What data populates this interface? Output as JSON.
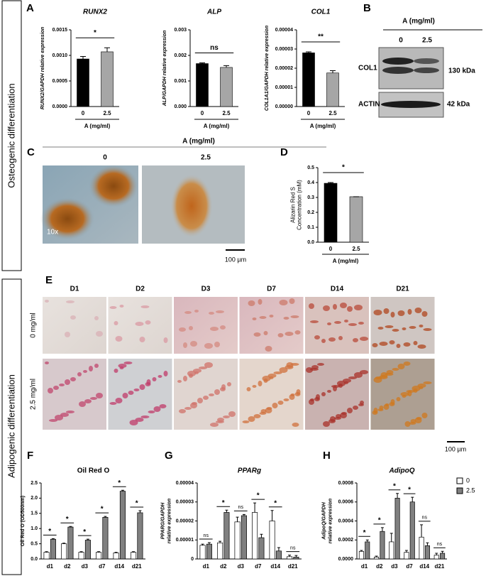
{
  "panels": {
    "letters": [
      "A",
      "B",
      "C",
      "D",
      "E",
      "F",
      "G",
      "H"
    ],
    "side_labels": [
      "Osteogenic differentiation",
      "Adipogenic differentiation"
    ]
  },
  "blot": {
    "header": "A (mg/ml)",
    "lanes": [
      "0",
      "2.5"
    ],
    "rows": [
      "COL1",
      "ACTIN"
    ],
    "sizes": [
      "130 kDa",
      "42 kDa"
    ]
  },
  "staining": {
    "header": "A (mg/ml)",
    "columns": [
      "0",
      "2.5"
    ],
    "magnification": "10x",
    "scale": "100 µm"
  },
  "oil_red_images": {
    "columns": [
      "D1",
      "D2",
      "D3",
      "D7",
      "D14",
      "D21"
    ],
    "rows": [
      "0 mg/ml",
      "2.5 mg/ml"
    ],
    "scale": "100 µm"
  },
  "chart_data": [
    {
      "type": "bar",
      "title": "RUNX2",
      "ylabel": [
        "RUNX2/GAPDH relative expression"
      ],
      "xlabel": "A (mg/ml)",
      "categories": [
        "0",
        "2.5"
      ],
      "values": [
        0.00093,
        0.00107
      ],
      "errors": [
        5e-05,
        8e-05
      ],
      "colors": [
        "#000000",
        "#a6a6a6"
      ],
      "significance": [
        "*"
      ],
      "ylim": [
        0,
        0.0015
      ],
      "yticks": [
        {
          "value": 0,
          "label": "0.0000"
        },
        0.0005,
        {
          "value": 0.001,
          "label": "0.0010"
        },
        0.0015
      ]
    },
    {
      "type": "bar",
      "title": "ALP",
      "ylabel": [
        "ALP/GAPDH relative expression"
      ],
      "xlabel": "A (mg/ml)",
      "categories": [
        "0",
        "2.5"
      ],
      "values": [
        0.00168,
        0.00153
      ],
      "errors": [
        3e-05,
        7e-05
      ],
      "colors": [
        "#000000",
        "#a6a6a6"
      ],
      "significance": [
        "ns"
      ],
      "ylim": [
        0,
        0.003
      ],
      "yticks": [
        {
          "value": 0,
          "label": "0.000"
        },
        0.001,
        0.002,
        0.003
      ]
    },
    {
      "type": "bar",
      "title": "COL1",
      "ylabel": [
        "COL1A1/GAPDH relative expression"
      ],
      "xlabel": "A (mg/ml)",
      "categories": [
        "0",
        "2.5"
      ],
      "values": [
        2.8e-05,
        1.75e-05
      ],
      "errors": [
        5e-07,
        1.2e-06
      ],
      "colors": [
        "#000000",
        "#a6a6a6"
      ],
      "significance": [
        "**"
      ],
      "ylim": [
        0,
        4e-05
      ],
      "yticks": [
        {
          "value": 0,
          "label": "0.00000"
        },
        1e-05,
        2e-05,
        3e-05,
        4e-05
      ]
    },
    {
      "type": "bar",
      "ylabel": [
        "Alizarin Red S",
        "Concentration (mM)"
      ],
      "xlabel": "A (mg/ml)",
      "categories": [
        "0",
        "2.5"
      ],
      "values": [
        0.395,
        0.305
      ],
      "errors": [
        0.005,
        0
      ],
      "colors": [
        "#000000",
        "#a6a6a6"
      ],
      "significance": [
        "*"
      ],
      "ylim": [
        0,
        0.5
      ],
      "yticks": [
        {
          "value": 0,
          "label": "0.0"
        },
        0.1,
        0.2,
        0.3,
        0.4,
        0.5
      ]
    },
    {
      "type": "grouped_bar",
      "title": "Oil Red O",
      "ylabel": [
        "Oil Red O (OD500nm)"
      ],
      "categories": [
        "d1",
        "d2",
        "d3",
        "d7",
        "d14",
        "d21"
      ],
      "series": [
        {
          "color": "#ffffff",
          "values": [
            0.22,
            0.5,
            0.22,
            0.22,
            0.2,
            0.22
          ],
          "errors": [
            0.02,
            0.02,
            0.02,
            0.02,
            0.02,
            0.02
          ]
        },
        {
          "color": "#808080",
          "values": [
            0.65,
            1.05,
            0.62,
            1.37,
            2.23,
            1.52
          ],
          "errors": [
            0.02,
            0.02,
            0.03,
            0.03,
            0.03,
            0.07
          ]
        }
      ],
      "significance": [
        "*",
        "*",
        "*",
        "*",
        "*",
        "*"
      ],
      "ylim": [
        0,
        2.5
      ],
      "yticks": [
        {
          "value": 0,
          "label": "0.0"
        },
        0.5,
        {
          "value": 1,
          "label": "1.0"
        },
        1.5,
        {
          "value": 2,
          "label": "2.0"
        },
        2.5
      ]
    },
    {
      "type": "grouped_bar",
      "title": "PPARg",
      "ylabel": [
        "PPARG/GAPDH",
        "relative expression"
      ],
      "categories": [
        "d1",
        "d2",
        "d3",
        "d7",
        "d14",
        "d21"
      ],
      "series": [
        {
          "color": "#ffffff",
          "values": [
            7.2e-06,
            8.5e-06,
            1.95e-05,
            2.45e-05,
            2e-05,
            1.2e-06
          ],
          "errors": [
            6e-07,
            8e-07,
            2.5e-06,
            5e-06,
            5.5e-06,
            8e-07
          ]
        },
        {
          "color": "#808080",
          "values": [
            7.8e-06,
            2.45e-05,
            2.28e-05,
            1.12e-05,
            4.2e-06,
            1e-06
          ],
          "errors": [
            8e-07,
            1.2e-06,
            6e-07,
            1.8e-06,
            1.8e-06,
            8e-07
          ]
        }
      ],
      "significance": [
        "ns",
        "*",
        "ns",
        "*",
        "*",
        "ns"
      ],
      "ylim": [
        0,
        4e-05
      ],
      "yticks": [
        0,
        1e-05,
        2e-05,
        3e-05,
        4e-05
      ]
    },
    {
      "type": "grouped_bar",
      "title": "AdipoQ",
      "ylabel": [
        "AdipoQ/GAPDH",
        "relative expression"
      ],
      "legend": "upper right",
      "categories": [
        "d1",
        "d2",
        "d3",
        "d7",
        "d14",
        "d21"
      ],
      "series": [
        {
          "name": "0",
          "color": "#ffffff",
          "values": [
            8e-05,
            2e-05,
            0.00018,
            7e-05,
            0.00023,
            4e-05
          ],
          "errors": [
            1e-05,
            1e-05,
            9e-05,
            2e-05,
            0.00013,
            2e-05
          ]
        },
        {
          "name": "2.5",
          "color": "#808080",
          "values": [
            0.00018,
            0.00029,
            0.00064,
            0.0006,
            0.00014,
            6e-05
          ],
          "errors": [
            2e-05,
            4e-05,
            5e-05,
            5e-05,
            3e-05,
            2e-05
          ]
        }
      ],
      "significance": [
        "*",
        "*",
        "*",
        "*",
        "ns",
        "ns"
      ],
      "ylim": [
        0,
        0.0008
      ],
      "yticks": [
        {
          "value": 0,
          "label": "0.0000"
        },
        0.0002,
        0.0004,
        0.0006,
        0.0008
      ]
    }
  ]
}
